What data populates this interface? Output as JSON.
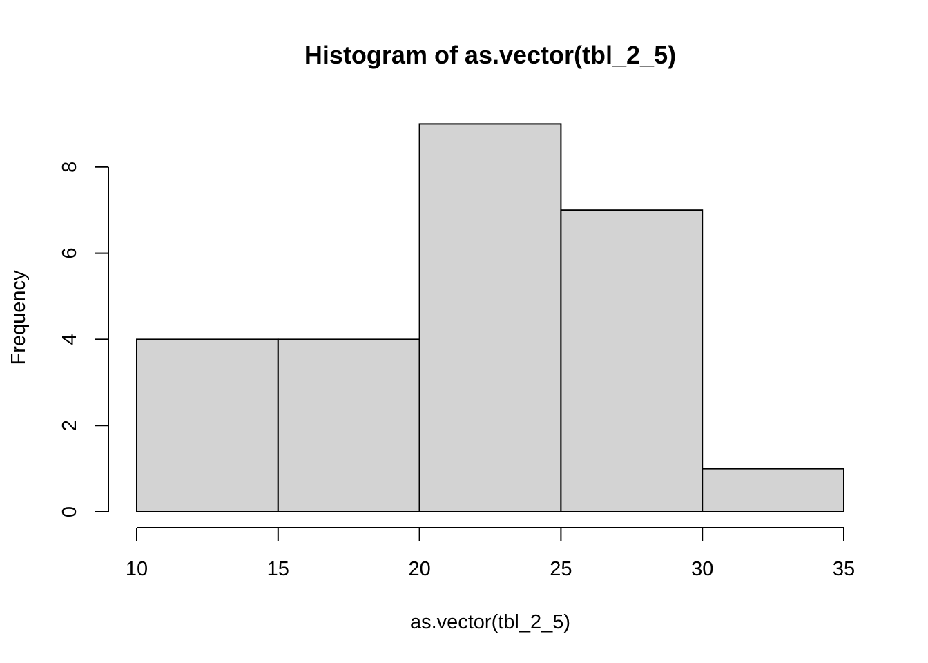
{
  "chart_data": {
    "type": "bar",
    "title": "Histogram of as.vector(tbl_2_5)",
    "xlabel": "as.vector(tbl_2_5)",
    "ylabel": "Frequency",
    "bins": [
      {
        "from": 10,
        "to": 15,
        "count": 4
      },
      {
        "from": 15,
        "to": 20,
        "count": 4
      },
      {
        "from": 20,
        "to": 25,
        "count": 9
      },
      {
        "from": 25,
        "to": 30,
        "count": 7
      },
      {
        "from": 30,
        "to": 35,
        "count": 1
      }
    ],
    "x_ticks": [
      "10",
      "15",
      "20",
      "25",
      "30",
      "35"
    ],
    "y_ticks": [
      "0",
      "2",
      "4",
      "6",
      "8"
    ],
    "xlim": [
      10,
      35
    ],
    "ylim": [
      0,
      9
    ],
    "grid": false,
    "colors": {
      "bar_fill": "#d3d3d3",
      "bar_stroke": "#000000"
    }
  }
}
